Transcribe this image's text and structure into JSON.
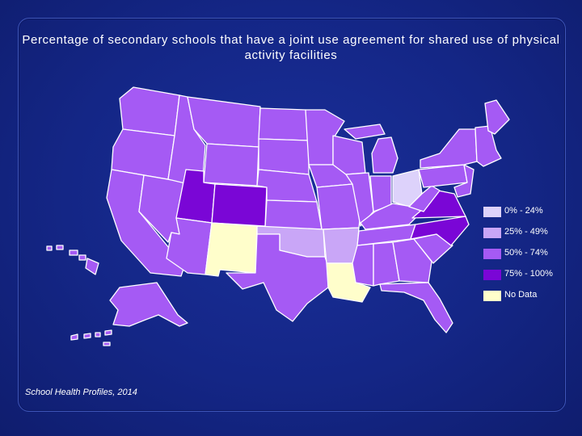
{
  "title": "Percentage of secondary schools that have a joint use agreement for shared use of physical activity facilities",
  "source": "School Health Profiles, 2014",
  "colors": {
    "0-24": "#ddd2fb",
    "25-49": "#c9a6f7",
    "50-74": "#a55af4",
    "75-100": "#7a06d6",
    "no_data": "#fffecb"
  },
  "legend": [
    {
      "label": "0% - 24%",
      "key": "0-24"
    },
    {
      "label": "25% - 49%",
      "key": "25-49"
    },
    {
      "label": "50% - 74%",
      "key": "50-74"
    },
    {
      "label": "75% - 100%",
      "key": "75-100"
    },
    {
      "label": "No Data",
      "key": "no_data"
    }
  ],
  "states": {
    "Washington": "50-74",
    "Oregon": "50-74",
    "California": "50-74",
    "Nevada": "50-74",
    "Idaho": "50-74",
    "Montana": "50-74",
    "Wyoming": "50-74",
    "Utah": "75-100",
    "Colorado": "75-100",
    "Arizona": "50-74",
    "New Mexico": "no_data",
    "North Dakota": "50-74",
    "South Dakota": "50-74",
    "Nebraska": "50-74",
    "Kansas": "50-74",
    "Oklahoma": "25-49",
    "Texas": "50-74",
    "Minnesota": "50-74",
    "Iowa": "50-74",
    "Missouri": "50-74",
    "Arkansas": "25-49",
    "Louisiana": "no_data",
    "Wisconsin": "50-74",
    "Illinois": "50-74",
    "Michigan": "50-74",
    "Indiana": "50-74",
    "Ohio": "0-24",
    "Kentucky": "50-74",
    "Tennessee": "50-74",
    "Mississippi": "50-74",
    "Alabama": "50-74",
    "Georgia": "50-74",
    "Florida": "50-74",
    "South Carolina": "50-74",
    "North Carolina": "75-100",
    "Virginia": "75-100",
    "West Virginia": "50-74",
    "Pennsylvania": "50-74",
    "New York": "50-74",
    "Maine": "50-74",
    "New England": "50-74",
    "Mid-Atlantic": "50-74",
    "Alaska": "50-74",
    "Hawaii": "50-74"
  }
}
